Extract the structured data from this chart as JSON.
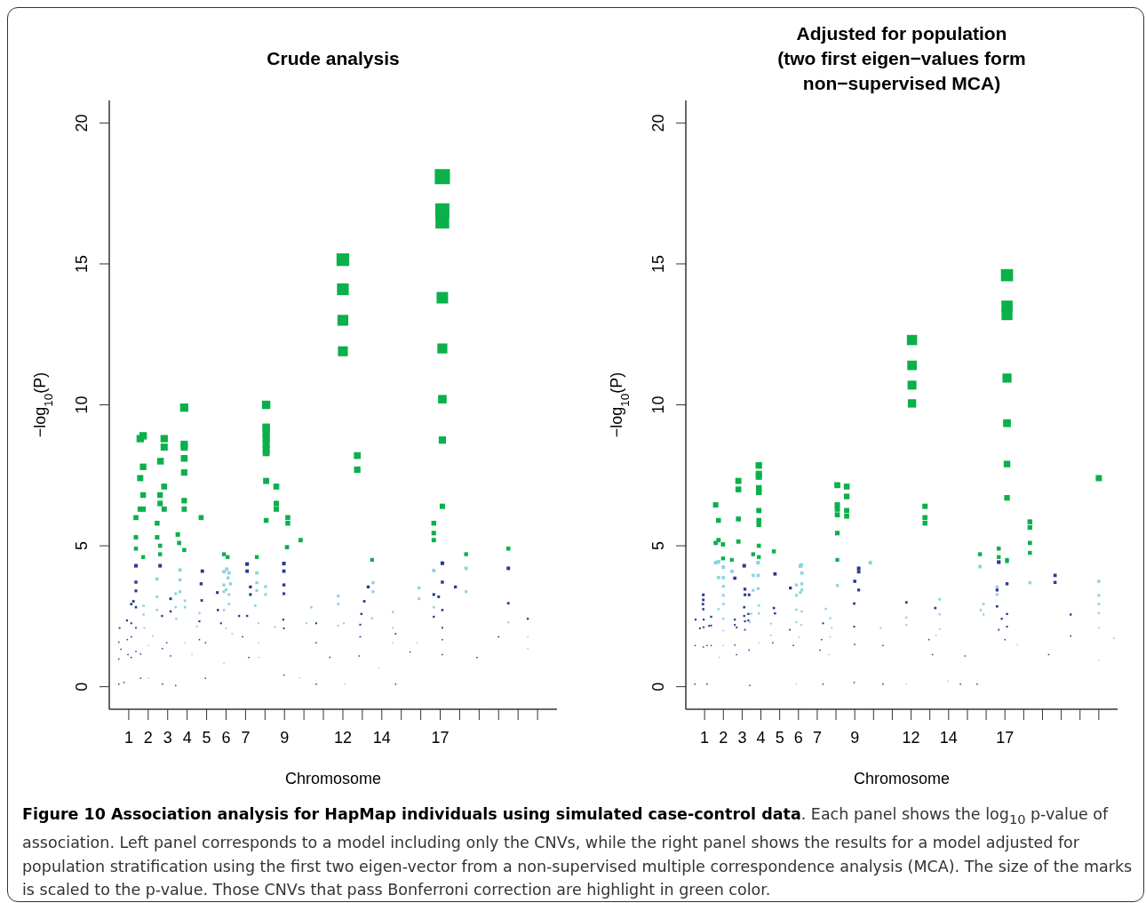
{
  "chart_data": [
    {
      "type": "scatter",
      "title": "Crude analysis",
      "xlabel": "Chromosome",
      "ylabel": "−log$_{10}$(P)",
      "marker": "square",
      "xlim": [
        0,
        23
      ],
      "ylim": [
        -0.8,
        20.8
      ],
      "yticks": [
        0,
        5,
        10,
        15,
        20
      ],
      "xticks": [
        1,
        2,
        3,
        4,
        5,
        6,
        7,
        {
          "value": 8,
          "label": null
        },
        9,
        {
          "value": 10,
          "label": null
        },
        {
          "value": 11,
          "label": null
        },
        12,
        {
          "value": 13,
          "label": null
        },
        14,
        {
          "value": 15,
          "label": null
        },
        {
          "value": 16,
          "label": null
        },
        17,
        {
          "value": 18,
          "label": null
        },
        {
          "value": 19,
          "label": null
        },
        {
          "value": 20,
          "label": null
        },
        {
          "value": 21,
          "label": null
        },
        {
          "value": 22,
          "label": null
        }
      ],
      "series": [
        {
          "color": "#2b3990",
          "x": [
            0.53,
            0.49,
            0.6,
            0.49,
            0.49,
            0.76,
            0.91,
            0.93,
            0.96,
            1.13,
            1.24,
            1.13,
            1.13,
            1.13,
            1.37,
            1.37,
            1.37,
            1.37,
            1.37,
            1.37,
            1.61,
            1.61,
            2.61,
            2.71,
            2.73,
            2.73,
            3.15,
            3.15,
            2.95,
            3.15,
            3.41,
            4.78,
            4.72,
            4.75,
            4.63,
            4.63,
            4.94,
            4.94,
            5.55,
            5.58,
            5.74,
            6.67,
            7.08,
            7.08,
            7.25,
            7.25,
            7.08,
            6.85,
            7.17,
            8.97,
            8.97,
            8.97,
            8.97,
            8.94,
            8.97,
            8.97,
            10.63,
            10.63,
            10.63,
            11.33,
            12.84,
            13.3,
            13.1,
            12.95,
            12.89,
            12.89,
            14.71,
            14.71,
            15.45,
            17.11,
            17.11,
            16.67,
            16.92,
            17.78,
            17.11,
            16.67,
            17.11,
            17.11,
            17.11,
            20.5,
            20.5,
            21.5,
            20,
            18.89
          ],
          "values": [
            2.08,
            1.58,
            1.33,
            0.98,
            0.09,
            0.15,
            2.35,
            1.67,
            1.14,
            2.93,
            3.03,
            2.25,
            1.77,
            1.04,
            4.29,
            3.71,
            3.4,
            2.82,
            2.09,
            1.25,
            1.16,
            0.3,
            4.29,
            2.51,
            1.35,
            0.09,
            3.12,
            2.67,
            1.56,
            1.09,
            0.04,
            4.1,
            3.65,
            3.06,
            2.32,
            1.67,
            1.56,
            0.3,
            3.34,
            2.72,
            2.25,
            2.51,
            4.35,
            4.1,
            3.54,
            3.27,
            2.51,
            1.77,
            1.04,
            4.37,
            4.1,
            3.61,
            3.3,
            2.38,
            2.07,
            0.41,
            2.25,
            1.56,
            0.09,
            1.04,
            1.09,
            3.54,
            3.03,
            2.58,
            2.2,
            1.77,
            1.88,
            0.09,
            1.23,
            4.38,
            3.71,
            3.27,
            3.19,
            3.54,
            2.72,
            2.48,
            2.09,
            1.67,
            1.14,
            4.2,
            2.96,
            2.41,
            1.77,
            1.04
          ],
          "sizes": [
            0.013,
            0.0078,
            0.0078,
            0.0078,
            0.0078,
            0.0078,
            0.017,
            0.0085,
            0.0078,
            0.026,
            0.028,
            0.015,
            0.0096,
            0.0078,
            0.056,
            0.042,
            0.035,
            0.024,
            0.013,
            0.0078,
            0.0078,
            0.0078,
            0.056,
            0.019,
            0.0078,
            0.0078,
            0.03,
            0.022,
            0.0078,
            0.0078,
            0.0078,
            0.051,
            0.041,
            0.029,
            0.016,
            0.0085,
            0.0078,
            0.0078,
            0.034,
            0.023,
            0.015,
            0.019,
            0.058,
            0.051,
            0.038,
            0.033,
            0.019,
            0.0096,
            0.0078,
            0.058,
            0.051,
            0.04,
            0.033,
            0.017,
            0.013,
            0.0078,
            0.015,
            0.0078,
            0.0078,
            0.0078,
            0.0078,
            0.038,
            0.028,
            0.02,
            0.015,
            0.0096,
            0.011,
            0.0078,
            0.0078,
            0.059,
            0.042,
            0.033,
            0.031,
            0.038,
            0.023,
            0.019,
            0.013,
            0.0085,
            0.0078,
            0.054,
            0.027,
            0.018,
            0.0096,
            0.0078
          ]
        },
        {
          "color": "#8ed4df",
          "x": [
            2.45,
            2.45,
            2.45,
            3.63,
            3.63,
            3.63,
            3.41,
            3.41,
            3.44,
            3.89,
            3.89,
            3.89,
            1.76,
            1.76,
            1.8,
            2.02,
            2.23,
            2.02,
            4.63,
            4.5,
            4.25,
            5.89,
            6.03,
            6.15,
            6.1,
            5.89,
            6.23,
            6,
            5.89,
            6.15,
            6.15,
            5.89,
            6,
            6.31,
            5.89,
            7.58,
            7.58,
            8.03,
            7.58,
            8.03,
            7.5,
            7.67,
            7.67,
            7.67,
            8.52,
            10.38,
            10.13,
            11.76,
            11.76,
            11.76,
            12.05,
            13.55,
            13.55,
            13.5,
            14.57,
            14.57,
            14.57,
            15.91,
            15.91,
            16.67,
            16.67,
            18.33,
            18.33,
            20.5,
            21.5,
            21.5,
            15.82,
            13.85,
            9.78,
            12.1
          ],
          "values": [
            3.82,
            3.19,
            2.72,
            4.14,
            3.79,
            3.37,
            3.3,
            2.82,
            2.41,
            3.05,
            2.82,
            1.56,
            2.87,
            2.56,
            2.09,
            1.46,
            1.8,
            0.3,
            2.61,
            2.14,
            1.14,
            4.08,
            4.17,
            4.04,
            3.86,
            3.61,
            3.65,
            3.44,
            3.37,
            3.27,
            2.93,
            2.72,
            2.07,
            1.88,
            0.83,
            4.04,
            3.69,
            3.55,
            3.41,
            3.27,
            2.87,
            2.25,
            1.56,
            1.04,
            2.12,
            2.82,
            2.25,
            3.22,
            2.93,
            2.16,
            2.25,
            3.69,
            3.37,
            2.43,
            2.65,
            2.09,
            1.56,
            3.51,
            3.12,
            4.12,
            2.82,
            4.2,
            3.37,
            2.28,
            1.77,
            1.35,
            1.56,
            0.67,
            0.3,
            0.09
          ],
          "sizes": [
            0.045,
            0.031,
            0.023,
            0.052,
            0.044,
            0.035,
            0.033,
            0.024,
            0.018,
            0.028,
            0.024,
            0.0078,
            0.025,
            0.02,
            0.013,
            0.0078,
            0.0099,
            0.0078,
            0.021,
            0.014,
            0.0078,
            0.051,
            0.053,
            0.05,
            0.045,
            0.04,
            0.041,
            0.036,
            0.035,
            0.033,
            0.026,
            0.023,
            0.013,
            0.011,
            0.0078,
            0.05,
            0.042,
            0.038,
            0.036,
            0.033,
            0.025,
            0.015,
            0.0078,
            0.0078,
            0.014,
            0.024,
            0.015,
            0.032,
            0.026,
            0.014,
            0.015,
            0.042,
            0.035,
            0.018,
            0.021,
            0.013,
            0.0078,
            0.038,
            0.03,
            0.052,
            0.024,
            0.054,
            0.035,
            0.016,
            0.0096,
            0.0078,
            0.0078,
            0.0078,
            0.0078,
            0.0078
          ]
        },
        {
          "color": "#0bb04b",
          "x": [
            1.59,
            1.74,
            1.74,
            1.59,
            1.74,
            1.59,
            1.74,
            1.37,
            1.37,
            1.37,
            1.74,
            2.63,
            2.61,
            2.61,
            2.46,
            2.46,
            2.61,
            2.61,
            2.82,
            2.82,
            2.82,
            2.82,
            3.85,
            3.85,
            3.85,
            3.85,
            3.85,
            3.85,
            3.85,
            3.52,
            3.59,
            3.85,
            4.72,
            5.89,
            6.08,
            8.06,
            8.06,
            8.06,
            8.06,
            8.06,
            8.06,
            8.06,
            8.06,
            8.06,
            7.58,
            8.58,
            8.58,
            8.58,
            9.17,
            9.17,
            9.13,
            9.83,
            12,
            12,
            12,
            12,
            12.74,
            12.74,
            13.5,
            17.11,
            17.11,
            17.11,
            17.11,
            17.11,
            17.11,
            17.11,
            17.11,
            16.67,
            16.67,
            16.67,
            18.33,
            20.5
          ],
          "values": [
            8.8,
            8.9,
            7.8,
            7.4,
            6.8,
            6.3,
            6.3,
            6.0,
            5.3,
            4.9,
            4.6,
            8.0,
            6.8,
            6.5,
            5.8,
            5.3,
            5.0,
            4.7,
            8.8,
            8.5,
            7.1,
            6.3,
            9.9,
            8.6,
            8.5,
            8.1,
            7.6,
            6.6,
            6.3,
            5.4,
            5.1,
            4.85,
            6.0,
            4.7,
            4.6,
            10.0,
            9.2,
            9.0,
            8.8,
            8.6,
            8.4,
            8.3,
            7.3,
            5.9,
            4.6,
            7.1,
            6.5,
            6.3,
            6.0,
            5.8,
            4.95,
            5.2,
            15.15,
            14.1,
            13.0,
            11.9,
            8.2,
            7.7,
            4.5,
            18.1,
            16.9,
            16.5,
            13.8,
            12.0,
            10.2,
            8.75,
            6.4,
            5.8,
            5.45,
            5.2,
            4.7,
            4.9
          ],
          "sizes": [
            0.236,
            0.242,
            0.186,
            0.167,
            0.141,
            0.121,
            0.121,
            0.11,
            0.086,
            0.073,
            0.065,
            0.195,
            0.141,
            0.129,
            0.103,
            0.086,
            0.076,
            0.067,
            0.236,
            0.221,
            0.154,
            0.121,
            0.299,
            0.226,
            0.221,
            0.2,
            0.176,
            0.133,
            0.121,
            0.089,
            0.079,
            0.072,
            0.11,
            0.067,
            0.065,
            0.305,
            0.258,
            0.247,
            0.236,
            0.226,
            0.215,
            0.21,
            0.163,
            0.106,
            0.065,
            0.154,
            0.129,
            0.121,
            0.11,
            0.103,
            0.075,
            0.083,
            0.701,
            0.607,
            0.516,
            0.432,
            0.205,
            0.181,
            0.062,
            1,
            0.872,
            0.831,
            0.581,
            0.44,
            0.318,
            0.234,
            0.125,
            0.103,
            0.091,
            0.083,
            0.067,
            0.073
          ]
        }
      ],
      "annotations": [
        "Figure 10 Association analysis for HapMap individuals using simulated case-control data",
        ". Each panel shows the log$_{10}$ p-value of association. Left panel corresponds to a model including only the CNVs, while the right panel shows the results for a model adjusted for population stratification using the first two eigen-vector from a non-supervised multiple correspondence analysis (MCA). The size of the marks is scaled to the p-value. Those CNVs that pass Bonferroni correction are highlight in green color."
      ]
    },
    {
      "type": "scatter",
      "title": "Adjusted for population\n(two first eigen−values form\nnon−supervised MCA)",
      "xlabel": "Chromosome",
      "ylabel": "−log$_{10}$(P)",
      "marker": "square",
      "xlim": [
        0,
        23
      ],
      "ylim": [
        -0.8,
        20.8
      ],
      "yticks": [
        0,
        5,
        10,
        15,
        20
      ],
      "xticks": [
        1,
        2,
        3,
        4,
        5,
        6,
        7,
        {
          "value": 8,
          "label": null
        },
        9,
        {
          "value": 10,
          "label": null
        },
        {
          "value": 11,
          "label": null
        },
        12,
        {
          "value": 13,
          "label": null
        },
        14,
        {
          "value": 15,
          "label": null
        },
        {
          "value": 16,
          "label": null
        },
        17,
        {
          "value": 18,
          "label": null
        },
        {
          "value": 19,
          "label": null
        },
        {
          "value": 20,
          "label": null
        },
        {
          "value": 21,
          "label": null
        },
        {
          "value": 22,
          "label": null
        }
      ],
      "series": [
        {
          "color": "#2b3990",
          "x": [
            0.93,
            0.93,
            0.91,
            0.93,
            0.95,
            0.95,
            0.93,
            0.75,
            0.52,
            0.5,
            0.48,
            1.35,
            1.35,
            1.24,
            1.13,
            1.35,
            1.13,
            2.61,
            2.61,
            2.61,
            2.71,
            2.61,
            2.7,
            3.11,
            3.15,
            3.15,
            3.11,
            3.11,
            3.15,
            3.37,
            3.33,
            3.33,
            3.15,
            3.37,
            3.41,
            4.75,
            4.69,
            4.75,
            4.63,
            5.57,
            5.54,
            5.73,
            7.31,
            7.23,
            7.15,
            7.31,
            9.21,
            9.21,
            9,
            9.21,
            8.97,
            8.97,
            9,
            8.97,
            10.5,
            10.5,
            11.75,
            12.95,
            13.29,
            13.14,
            14.88,
            14.63,
            16.67,
            16.58,
            17.11,
            16.58,
            17.11,
            16.83,
            16.67,
            17.11,
            17,
            19.67,
            19.67,
            20.5,
            20.5,
            19.33,
            15.52
          ],
          "values": [
            3.26,
            3.08,
            2.93,
            2.75,
            2.38,
            2.11,
            1.41,
            2.07,
            2.38,
            1.46,
            0.09,
            2.48,
            2.17,
            2.16,
            1.46,
            1.46,
            0.09,
            3.85,
            2.38,
            2.19,
            2.1,
            1.48,
            1.14,
            4.29,
            3.46,
            3.26,
            2.82,
            2.51,
            2.32,
            3.26,
            2.58,
            2.35,
            2.02,
            1.3,
            0.04,
            4.0,
            2.79,
            2.6,
            1.56,
            3.5,
            2.02,
            1.46,
            2.25,
            1.67,
            1.3,
            0.09,
            4.2,
            4.08,
            3.74,
            3.43,
            2.95,
            2.13,
            1.5,
            0.15,
            1.46,
            0.09,
            2.99,
            1.67,
            2.79,
            1.14,
            1.09,
            0.09,
            4.42,
            3.43,
            3.65,
            2.85,
            2.58,
            2.41,
            2.02,
            2.13,
            1.67,
            3.95,
            3.7,
            2.56,
            1.8,
            1.14,
            0.09
          ],
          "sizes": [
            0.049,
            0.045,
            0.04,
            0.035,
            0.026,
            0.022,
            0.012,
            0.02,
            0.026,
            0.012,
            0.012,
            0.029,
            0.022,
            0.022,
            0.012,
            0.012,
            0.012,
            0.069,
            0.026,
            0.023,
            0.02,
            0.012,
            0.012,
            0.086,
            0.057,
            0.049,
            0.037,
            0.029,
            0.025,
            0.049,
            0.031,
            0.026,
            0.018,
            0.012,
            0.012,
            0.075,
            0.037,
            0.032,
            0.012,
            0.057,
            0.018,
            0.012,
            0.023,
            0.013,
            0.012,
            0.012,
            0.083,
            0.078,
            0.066,
            0.055,
            0.041,
            0.022,
            0.012,
            0.012,
            0.012,
            0.012,
            0.041,
            0.013,
            0.037,
            0.012,
            0.012,
            0.012,
            0.092,
            0.055,
            0.063,
            0.038,
            0.031,
            0.028,
            0.018,
            0.022,
            0.013,
            0.074,
            0.065,
            0.031,
            0.015,
            0.012,
            0.012
          ]
        },
        {
          "color": "#8ed4df",
          "x": [
            1.59,
            1.74,
            1.74,
            1.74,
            2,
            2,
            2,
            2,
            2,
            2,
            2,
            2,
            1.78,
            2.46,
            3.59,
            3.85,
            3.85,
            3.85,
            3.59,
            3.48,
            3.41,
            3.89,
            3.89,
            3.89,
            4.53,
            4.53,
            6.15,
            6.18,
            6.1,
            5.89,
            6.18,
            5.89,
            6.1,
            6.18,
            5.89,
            6.18,
            5.89,
            6.15,
            6.03,
            5.89,
            8.07,
            7.46,
            7.69,
            7.77,
            7.69,
            7.62,
            9.83,
            10.38,
            11.75,
            11.75,
            11.75,
            13.52,
            13.52,
            13.52,
            13.33,
            15.67,
            16.58,
            16.58,
            15.86,
            15.86,
            15.71,
            18.33,
            22,
            22,
            22,
            22,
            22,
            22.8,
            17.67,
            22,
            13.95
          ],
          "values": [
            4.4,
            4.43,
            3.87,
            2.75,
            4.24,
            3.87,
            3.56,
            3.24,
            2.93,
            2.41,
            1.99,
            1.46,
            1.04,
            4.09,
            3.95,
            4.4,
            3.95,
            3.48,
            3.42,
            2.59,
            2.29,
            2.88,
            2.6,
            1.56,
            2.24,
            1.82,
            4.32,
            4.03,
            4.28,
            3.61,
            3.65,
            3.24,
            3.34,
            3.43,
            2.73,
            2.67,
            2.29,
            2.19,
            1.75,
            0.09,
            3.59,
            2.76,
            2.43,
            2.09,
            1.77,
            1.14,
            4.4,
            2.09,
            2.45,
            2.19,
            0.09,
            3.1,
            2.57,
            2.04,
            1.82,
            4.26,
            3.54,
            3.27,
            2.93,
            2.56,
            2.72,
            3.69,
            3.74,
            3.24,
            2.93,
            2.61,
            2.09,
            1.72,
            1.49,
            0.93,
            0.2
          ],
          "sizes": [
            0.091,
            0.092,
            0.071,
            0.035,
            0.084,
            0.071,
            0.06,
            0.049,
            0.04,
            0.028,
            0.018,
            0.012,
            0.012,
            0.078,
            0.074,
            0.091,
            0.074,
            0.057,
            0.055,
            0.031,
            0.025,
            0.038,
            0.032,
            0.012,
            0.023,
            0.0155,
            0.088,
            0.077,
            0.086,
            0.061,
            0.063,
            0.049,
            0.052,
            0.055,
            0.035,
            0.034,
            0.025,
            0.023,
            0.0143,
            0.012,
            0.06,
            0.035,
            0.028,
            0.02,
            0.0147,
            0.012,
            0.091,
            0.02,
            0.028,
            0.023,
            0.012,
            0.045,
            0.031,
            0.02,
            0.0155,
            0.084,
            0.058,
            0.051,
            0.04,
            0.031,
            0.035,
            0.065,
            0.066,
            0.049,
            0.04,
            0.032,
            0.02,
            0.0138,
            0.012,
            0.012,
            0.012
          ]
        },
        {
          "color": "#0bb04b",
          "x": [
            12.05,
            12.05,
            12.05,
            12.05,
            17.11,
            17.11,
            17.11,
            17.11,
            17.11,
            17.11,
            17.11,
            17.11,
            22,
            12.74,
            12.74,
            12.74,
            18.33,
            18.33,
            18.33,
            18.33,
            16.67,
            16.67,
            17.11,
            15.67,
            1.59,
            1.74,
            1.74,
            1.59,
            1.98,
            1.98,
            2.45,
            2.8,
            2.8,
            2.8,
            2.8,
            3.89,
            3.89,
            3.89,
            3.89,
            3.89,
            3.89,
            3.89,
            3.89,
            3.89,
            3.59,
            3.89,
            4.69,
            8.07,
            8.07,
            8.07,
            8.07,
            8.07,
            8.07,
            8.57,
            8.57,
            8.57,
            8.57
          ],
          "values": [
            12.3,
            11.4,
            10.7,
            10.05,
            14.6,
            13.5,
            13.2,
            10.95,
            9.35,
            7.9,
            6.7,
            4.5,
            7.4,
            6.4,
            6.0,
            5.8,
            5.85,
            5.65,
            5.1,
            4.75,
            4.9,
            4.6,
            4.45,
            4.7,
            6.45,
            5.9,
            5.2,
            5.1,
            5.05,
            4.55,
            4.5,
            7.3,
            7.0,
            5.95,
            5.15,
            7.85,
            7.55,
            7.45,
            7.05,
            6.9,
            6.25,
            5.9,
            5.75,
            5.0,
            4.7,
            4.6,
            4.8,
            7.15,
            6.45,
            6.3,
            6.1,
            5.45,
            4.5,
            7.1,
            6.75,
            6.25,
            6.05
          ],
          "sizes": [
            0.71,
            0.61,
            0.538,
            0.473,
            1,
            0.854,
            0.817,
            0.562,
            0.41,
            0.293,
            0.21,
            0.095,
            0.257,
            0.192,
            0.169,
            0.158,
            0.16,
            0.149,
            0.121,
            0.106,
            0.112,
            0.1,
            0.092,
            0.103,
            0.195,
            0.163,
            0.127,
            0.121,
            0.12,
            0.097,
            0.095,
            0.25,
            0.23,
            0.166,
            0.124,
            0.289,
            0.267,
            0.26,
            0.233,
            0.223,
            0.183,
            0.163,
            0.155,
            0.117,
            0.103,
            0.1,
            0.108,
            0.24,
            0.195,
            0.186,
            0.175,
            0.14,
            0.095,
            0.237,
            0.214,
            0.183,
            0.172
          ]
        }
      ]
    }
  ]
}
